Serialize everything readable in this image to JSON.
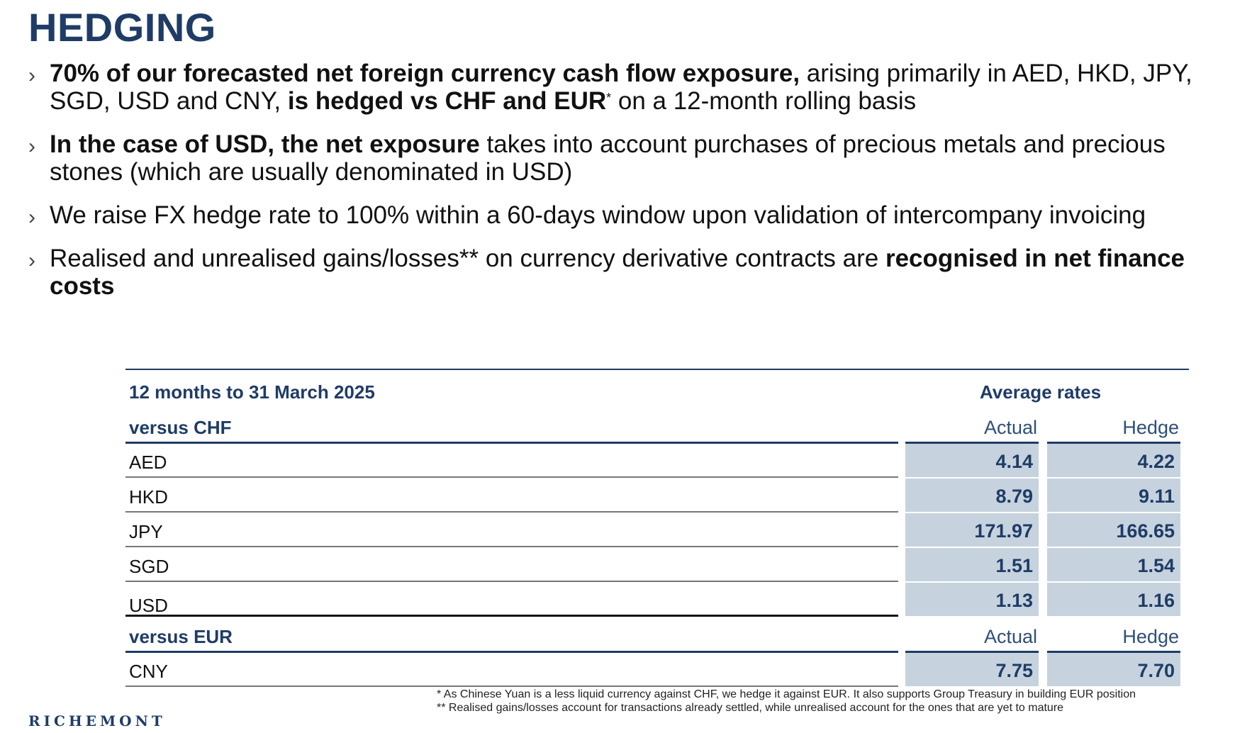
{
  "title": "HEDGING",
  "bullets": {
    "b1": {
      "bold1": "70% of our forecasted net foreign currency cash flow exposure,",
      "text1": " arising primarily in AED, HKD, JPY, SGD, USD and CNY, ",
      "bold2": "is hedged vs CHF and EUR",
      "sup": "*",
      "text2": " on a 12-month rolling basis"
    },
    "b2": {
      "bold1": "In the case of USD, the net exposure",
      "text1": " takes into account purchases of precious metals and precious stones (which are usually denominated in USD)"
    },
    "b3": {
      "text1": "We raise FX hedge rate to 100% within a 60-days window upon validation of intercompany invoicing"
    },
    "b4": {
      "text1": "Realised and unrealised gains/losses** on currency derivative contracts are ",
      "bold1": "recognised in net finance costs"
    }
  },
  "table": {
    "period": "12 months to 31 March 2025",
    "avg_rates": "Average rates",
    "chf": {
      "group": "versus CHF",
      "col_actual": "Actual",
      "col_hedge": "Hedge",
      "rows": [
        {
          "ccy": "AED",
          "actual": "4.14",
          "hedge": "4.22"
        },
        {
          "ccy": "HKD",
          "actual": "8.79",
          "hedge": "9.11"
        },
        {
          "ccy": "JPY",
          "actual": "171.97",
          "hedge": "166.65"
        },
        {
          "ccy": "SGD",
          "actual": "1.51",
          "hedge": "1.54"
        },
        {
          "ccy": "USD",
          "actual": "1.13",
          "hedge": "1.16"
        }
      ]
    },
    "eur": {
      "group": "versus EUR",
      "col_actual": "Actual",
      "col_hedge": "Hedge",
      "rows": [
        {
          "ccy": "CNY",
          "actual": "7.75",
          "hedge": "7.70"
        }
      ]
    }
  },
  "footnotes": {
    "f1": "* As Chinese Yuan is a less liquid currency against CHF, we hedge it against EUR. It also supports Group Treasury in building EUR position",
    "f2": "** Realised gains/losses account for transactions already settled, while unrealised account for the ones that are yet to mature"
  },
  "logo_text": "RICHEMONT",
  "colors": {
    "brand": "#1f3c66",
    "cell_bg": "#c6d3de"
  }
}
